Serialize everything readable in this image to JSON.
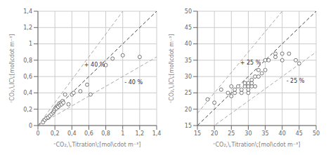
{
  "chart_data": [
    {
      "type": "scatter",
      "x": [
        0.06,
        0.08,
        0.1,
        0.12,
        0.14,
        0.16,
        0.18,
        0.19,
        0.2,
        0.21,
        0.22,
        0.23,
        0.24,
        0.25,
        0.26,
        0.27,
        0.28,
        0.29,
        0.3,
        0.32,
        0.36,
        0.4,
        0.42,
        0.5,
        0.58,
        0.62,
        0.8,
        0.88,
        1.0,
        1.2
      ],
      "values": [
        0.04,
        0.07,
        0.09,
        0.1,
        0.12,
        0.14,
        0.16,
        0.18,
        0.2,
        0.22,
        0.21,
        0.24,
        0.23,
        0.27,
        0.25,
        0.28,
        0.26,
        0.3,
        0.28,
        0.38,
        0.26,
        0.38,
        0.4,
        0.42,
        0.5,
        0.38,
        0.74,
        0.82,
        0.86,
        0.84
      ],
      "color": "#555555",
      "marker": "circle",
      "xlim": [
        0,
        1.4
      ],
      "ylim": [
        0,
        1.4
      ],
      "xticks": [
        0,
        {
          "value": 0.2,
          "label": "0,2"
        },
        {
          "value": 0.4,
          "label": "0,4"
        },
        {
          "value": 0.6,
          "label": "0,6"
        },
        {
          "value": 0.8,
          "label": "0,8"
        },
        1,
        {
          "value": 1.2,
          "label": "1,2"
        },
        {
          "value": 1.4,
          "label": "1,4"
        }
      ],
      "yticks": [
        0,
        {
          "value": 0.2,
          "label": "0,2"
        },
        {
          "value": 0.4,
          "label": "0,4"
        },
        {
          "value": 0.6,
          "label": "0,6"
        },
        {
          "value": 0.8,
          "label": "0,8"
        },
        1,
        {
          "value": 1.2,
          "label": "1,2"
        },
        {
          "value": 1.4,
          "label": "1,4"
        }
      ],
      "x_label": "ᶜCO₂,\\,Titration\\;[mol\\cdot m⁻³]",
      "y_label": "ᶜCO₂,\\,IC\\;[mol\\cdot m⁻³]",
      "grid": true,
      "reference_lines": [
        {
          "slope": 1,
          "color": "#444444",
          "line_style": "dashed"
        },
        {
          "slope": 1.4,
          "color": "#aaaaaa",
          "line_style": "dashed"
        },
        {
          "slope": 0.6,
          "color": "#aaaaaa",
          "line_style": "dashed"
        }
      ],
      "annotations": [
        {
          "text": "+ 40 %",
          "x": 0.504,
          "y": 0.7476,
          "color": "#333333"
        },
        {
          "text": "- 40 %",
          "x": 0.98,
          "y": 0.532,
          "color": "#333333"
        }
      ]
    },
    {
      "type": "scatter",
      "x": [
        18,
        20,
        22,
        24,
        25,
        25,
        26,
        26,
        27,
        28,
        28,
        29,
        29,
        30,
        30,
        30,
        30,
        31,
        31,
        31,
        32,
        32,
        33,
        33,
        34,
        35,
        35,
        36,
        38,
        38,
        40,
        40,
        42,
        44,
        45
      ],
      "values": [
        23,
        22,
        26,
        25,
        24,
        27,
        25,
        26,
        27,
        25,
        26,
        27,
        28,
        25,
        26,
        27,
        28,
        27,
        28,
        29,
        27,
        30,
        30,
        32,
        31,
        32,
        35,
        35,
        37,
        36,
        35,
        37,
        37,
        35,
        34
      ],
      "color": "#555555",
      "marker": "circle",
      "xlim": [
        15,
        50
      ],
      "ylim": [
        15,
        50
      ],
      "xticks": [
        15,
        20,
        25,
        30,
        35,
        40,
        45,
        50
      ],
      "yticks": [
        15,
        20,
        25,
        30,
        35,
        40,
        45,
        50
      ],
      "x_label": "ᶜCO₂,\\,Titration\\;[mol\\cdot m⁻³]",
      "y_label": "ᶜCO₂,\\,IC\\;[mol\\cdot m⁻³]",
      "grid": true,
      "reference_lines": [
        {
          "slope": 1,
          "color": "#444444",
          "line_style": "dashed"
        },
        {
          "slope": 1.25,
          "color": "#aaaaaa",
          "line_style": "dashed"
        },
        {
          "slope": 0.75,
          "color": "#aaaaaa",
          "line_style": "dashed"
        }
      ],
      "annotations": [
        {
          "text": "+ 25 %",
          "x": 26.55,
          "y": 34.2375,
          "color": "#333333"
        },
        {
          "text": "- 25 %",
          "x": 40.2,
          "y": 28.75,
          "color": "#333333"
        }
      ]
    }
  ]
}
